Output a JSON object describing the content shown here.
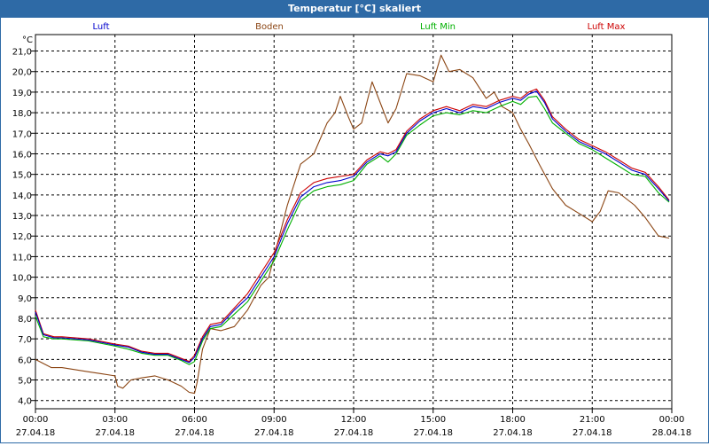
{
  "window": {
    "title": "Temperatur [°C] skaliert"
  },
  "chart_data": {
    "type": "line",
    "title": "Temperatur [°C] skaliert",
    "ylabel": "°C",
    "xlabel": "",
    "grid": true,
    "ylim": [
      3.6,
      21.8
    ],
    "y_ticks": [
      "4,0",
      "5,0",
      "6,0",
      "7,0",
      "8,0",
      "9,0",
      "10,0",
      "11,0",
      "12,0",
      "13,0",
      "14,0",
      "15,0",
      "16,0",
      "17,0",
      "18,0",
      "19,0",
      "20,0",
      "21,0"
    ],
    "y_tick_values": [
      4,
      5,
      6,
      7,
      8,
      9,
      10,
      11,
      12,
      13,
      14,
      15,
      16,
      17,
      18,
      19,
      20,
      21
    ],
    "xlim": [
      0,
      24
    ],
    "x_ticks": [
      {
        "x": 0,
        "time": "00:00",
        "date": "27.04.18"
      },
      {
        "x": 3,
        "time": "03:00",
        "date": "27.04.18"
      },
      {
        "x": 6,
        "time": "06:00",
        "date": "27.04.18"
      },
      {
        "x": 9,
        "time": "09:00",
        "date": "27.04.18"
      },
      {
        "x": 12,
        "time": "12:00",
        "date": "27.04.18"
      },
      {
        "x": 15,
        "time": "15:00",
        "date": "27.04.18"
      },
      {
        "x": 18,
        "time": "18:00",
        "date": "27.04.18"
      },
      {
        "x": 21,
        "time": "21:00",
        "date": "27.04.18"
      },
      {
        "x": 24,
        "time": "00:00",
        "date": "28.04.18"
      }
    ],
    "series": [
      {
        "name": "Luft",
        "color": "#0000cc",
        "x": [
          0,
          0.3,
          0.7,
          1,
          2,
          3,
          3.5,
          4,
          4.5,
          5,
          5.5,
          5.8,
          6,
          6.3,
          6.6,
          7,
          7.5,
          8,
          8.5,
          9,
          9.5,
          10,
          10.5,
          11,
          11.5,
          12,
          12.5,
          13,
          13.3,
          13.6,
          14,
          14.5,
          15,
          15.5,
          16,
          16.5,
          17,
          17.5,
          18,
          18.3,
          18.6,
          18.9,
          19.2,
          19.5,
          20,
          20.5,
          21,
          21.5,
          22,
          22.5,
          23,
          23.5,
          23.9
        ],
        "y": [
          8.3,
          7.2,
          7.05,
          7.05,
          6.95,
          6.7,
          6.6,
          6.35,
          6.25,
          6.25,
          6.0,
          5.85,
          6.1,
          7.0,
          7.6,
          7.7,
          8.4,
          9.0,
          10.0,
          11.0,
          12.6,
          13.9,
          14.4,
          14.6,
          14.7,
          14.9,
          15.6,
          16.0,
          15.9,
          16.1,
          17.0,
          17.6,
          18.0,
          18.2,
          18.0,
          18.3,
          18.2,
          18.5,
          18.7,
          18.6,
          18.9,
          19.05,
          18.5,
          17.7,
          17.1,
          16.6,
          16.3,
          16.0,
          15.6,
          15.2,
          15.0,
          14.3,
          13.7
        ]
      },
      {
        "name": "Boden",
        "color": "#8b4513",
        "x": [
          0,
          0.3,
          0.6,
          1,
          1.5,
          2,
          2.5,
          3,
          3.1,
          3.3,
          3.6,
          4,
          4.5,
          5,
          5.5,
          5.8,
          6,
          6.1,
          6.3,
          6.6,
          7,
          7.5,
          8,
          8.5,
          8.8,
          9,
          9.5,
          10,
          10.5,
          11,
          11.3,
          11.5,
          11.8,
          12,
          12.3,
          12.7,
          13,
          13.3,
          13.6,
          14,
          14.5,
          15,
          15.3,
          15.6,
          16,
          16.5,
          17,
          17.3,
          17.6,
          18,
          18.3,
          18.6,
          19,
          19.5,
          20,
          20.5,
          21,
          21.3,
          21.6,
          22,
          22.3,
          22.6,
          23,
          23.5,
          23.9
        ],
        "y": [
          6.0,
          5.8,
          5.6,
          5.6,
          5.5,
          5.4,
          5.3,
          5.2,
          4.7,
          4.6,
          5.0,
          5.1,
          5.2,
          5.0,
          4.7,
          4.4,
          4.35,
          4.9,
          6.5,
          7.5,
          7.4,
          7.6,
          8.4,
          9.6,
          10.0,
          11.0,
          13.5,
          15.5,
          16.0,
          17.5,
          18.0,
          18.8,
          17.8,
          17.2,
          17.5,
          19.5,
          18.5,
          17.5,
          18.2,
          19.9,
          19.8,
          19.5,
          20.8,
          20.0,
          20.1,
          19.7,
          18.7,
          19.0,
          18.3,
          18.0,
          17.2,
          16.5,
          15.5,
          14.3,
          13.5,
          13.1,
          12.7,
          13.2,
          14.2,
          14.1,
          13.8,
          13.5,
          12.9,
          12.0,
          11.9
        ]
      },
      {
        "name": "Luft Min",
        "color": "#00b000",
        "x": [
          0,
          0.3,
          0.7,
          1,
          2,
          3,
          3.5,
          4,
          4.5,
          5,
          5.5,
          5.8,
          6,
          6.3,
          6.6,
          7,
          7.5,
          8,
          8.5,
          9,
          9.5,
          10,
          10.5,
          11,
          11.5,
          12,
          12.5,
          13,
          13.3,
          13.6,
          14,
          14.5,
          15,
          15.5,
          16,
          16.5,
          17,
          17.5,
          18,
          18.3,
          18.6,
          18.9,
          19.2,
          19.5,
          20,
          20.5,
          21,
          21.5,
          22,
          22.5,
          23,
          23.5,
          23.9
        ],
        "y": [
          8.1,
          7.1,
          7.0,
          7.0,
          6.9,
          6.65,
          6.5,
          6.3,
          6.2,
          6.2,
          5.95,
          5.75,
          5.9,
          6.9,
          7.5,
          7.6,
          8.2,
          8.8,
          9.8,
          10.8,
          12.3,
          13.7,
          14.2,
          14.4,
          14.5,
          14.7,
          15.5,
          15.9,
          15.6,
          16.0,
          16.9,
          17.4,
          17.85,
          18.0,
          17.9,
          18.1,
          18.0,
          18.3,
          18.55,
          18.4,
          18.75,
          18.8,
          18.2,
          17.5,
          17.0,
          16.5,
          16.2,
          15.8,
          15.4,
          15.0,
          14.9,
          14.1,
          13.65
        ]
      },
      {
        "name": "Luft Max",
        "color": "#cc0000",
        "x": [
          0,
          0.3,
          0.7,
          1,
          2,
          3,
          3.5,
          4,
          4.5,
          5,
          5.5,
          5.8,
          6,
          6.3,
          6.6,
          7,
          7.5,
          8,
          8.5,
          9,
          9.5,
          10,
          10.5,
          11,
          11.5,
          12,
          12.5,
          13,
          13.3,
          13.6,
          14,
          14.5,
          15,
          15.5,
          16,
          16.5,
          17,
          17.5,
          18,
          18.3,
          18.6,
          18.9,
          19.2,
          19.5,
          20,
          20.5,
          21,
          21.5,
          22,
          22.5,
          23,
          23.5,
          23.9
        ],
        "y": [
          8.4,
          7.25,
          7.1,
          7.1,
          7.0,
          6.75,
          6.65,
          6.4,
          6.3,
          6.3,
          6.05,
          5.9,
          6.2,
          7.1,
          7.7,
          7.8,
          8.5,
          9.2,
          10.2,
          11.2,
          12.8,
          14.1,
          14.6,
          14.8,
          14.9,
          15.0,
          15.7,
          16.1,
          16.0,
          16.2,
          17.1,
          17.7,
          18.1,
          18.3,
          18.1,
          18.4,
          18.3,
          18.6,
          18.8,
          18.7,
          19.0,
          19.15,
          18.6,
          17.8,
          17.2,
          16.7,
          16.4,
          16.1,
          15.7,
          15.3,
          15.1,
          14.4,
          13.75
        ]
      }
    ]
  }
}
